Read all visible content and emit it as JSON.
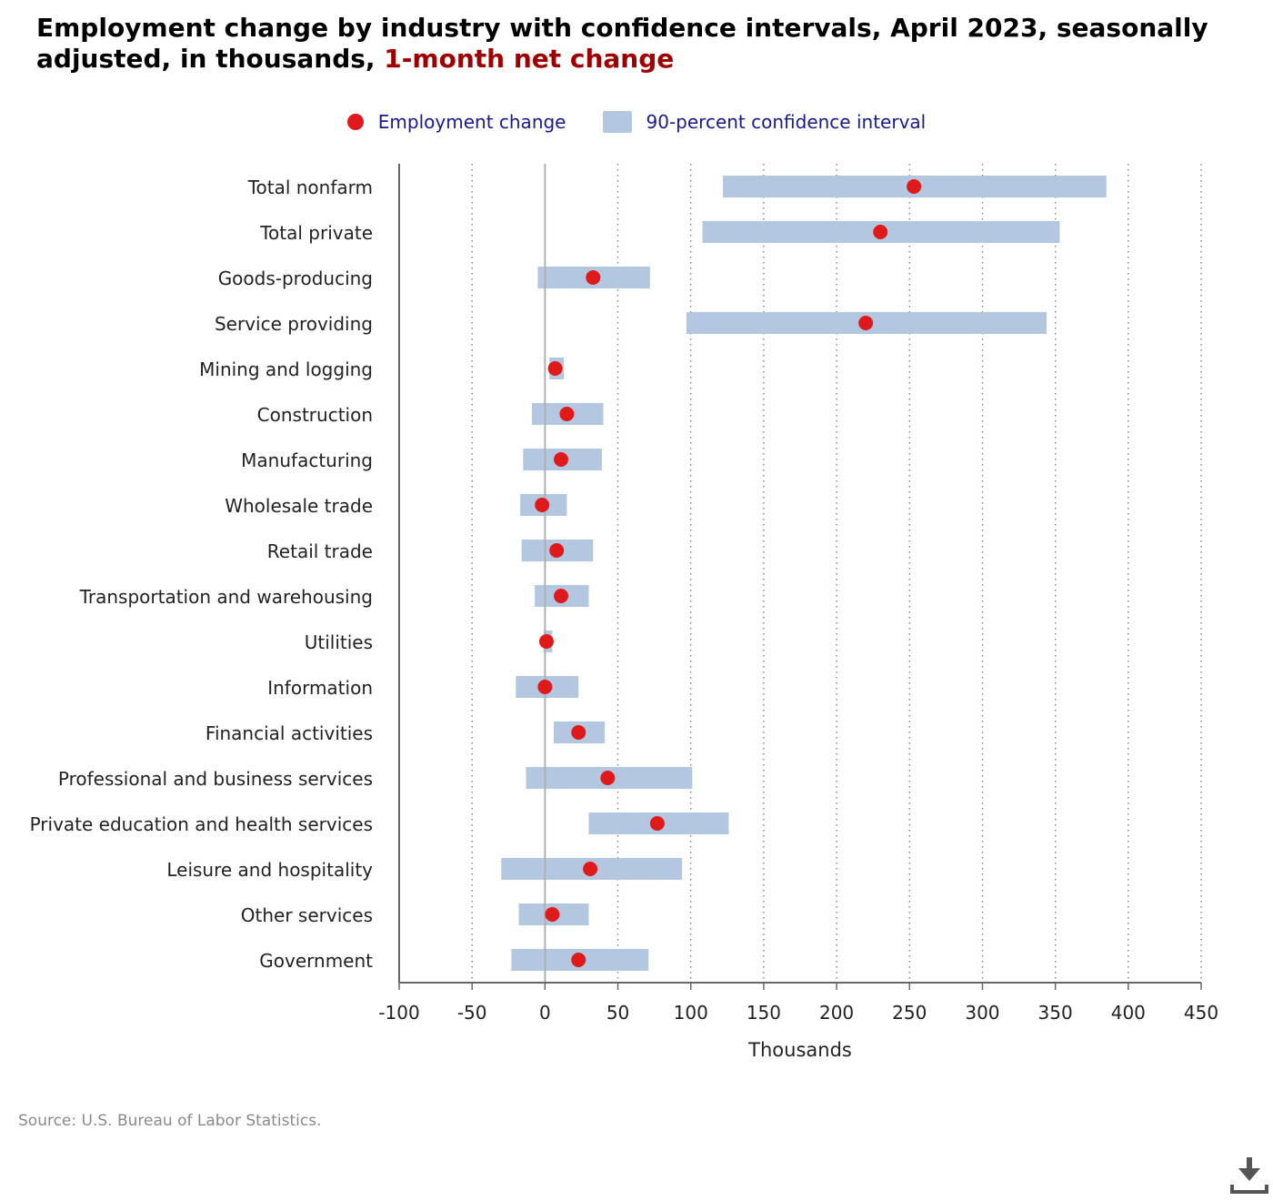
{
  "title": {
    "main": "Employment change by industry with confidence intervals, April 2023, seasonally adjusted, in thousands,",
    "highlight": "1-month net change"
  },
  "legend": {
    "point_label": "Employment change",
    "interval_label": "90-percent confidence interval"
  },
  "colors": {
    "point": "#e0191b",
    "interval": "#b3c8e0",
    "legend_text": "#1a1a8c",
    "title_highlight": "#a00000",
    "grid": "#888888",
    "zero_line": "#b0b0b0",
    "axis": "#666666"
  },
  "source": "Source: U.S. Bureau of Labor Statistics.",
  "download_icon": "download-icon",
  "chart_data": {
    "type": "dot-interval",
    "title": "Employment change by industry with confidence intervals, April 2023, seasonally adjusted, in thousands, 1-month net change",
    "xlabel": "Thousands",
    "ylabel": "",
    "xlim": [
      -100,
      450
    ],
    "xticks": [
      -100,
      -50,
      0,
      50,
      100,
      150,
      200,
      250,
      300,
      350,
      400,
      450
    ],
    "grid": "vertical dotted",
    "legend_position": "top-center",
    "categories": [
      "Total nonfarm",
      "Total private",
      "Goods-producing",
      "Service providing",
      "Mining and logging",
      "Construction",
      "Manufacturing",
      "Wholesale trade",
      "Retail trade",
      "Transportation and warehousing",
      "Utilities",
      "Information",
      "Financial activities",
      "Professional and business services",
      "Private education and health services",
      "Leisure and hospitality",
      "Other services",
      "Government"
    ],
    "series": [
      {
        "name": "Employment change",
        "values": [
          253,
          230,
          33,
          220,
          7,
          15,
          11,
          -2,
          8,
          11,
          1,
          0,
          23,
          43,
          77,
          31,
          5,
          23
        ]
      },
      {
        "name": "90-percent confidence interval",
        "low": [
          122,
          108,
          -5,
          97,
          3,
          -9,
          -15,
          -17,
          -16,
          -7,
          -1,
          -20,
          6,
          -13,
          30,
          -30,
          -18,
          -23
        ],
        "high": [
          385,
          353,
          72,
          344,
          13,
          40,
          39,
          15,
          33,
          30,
          5,
          23,
          41,
          101,
          126,
          94,
          30,
          71
        ]
      }
    ]
  }
}
